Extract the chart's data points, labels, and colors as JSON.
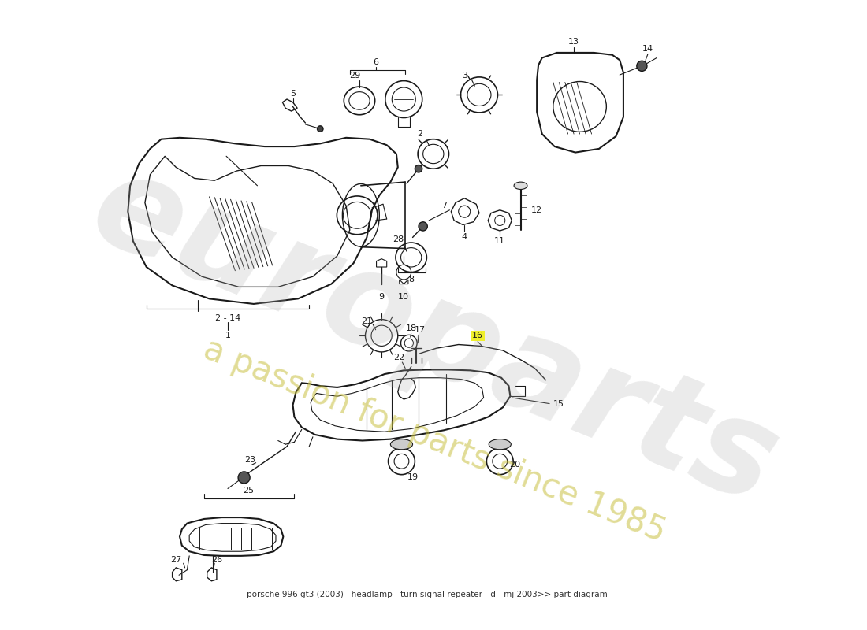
{
  "bg_color": "#ffffff",
  "line_color": "#1a1a1a",
  "watermark1": "europarts",
  "watermark2": "a passion for parts since 1985",
  "wm_color1": "#b0b0b0",
  "wm_color2": "#c8c040",
  "title": "porsche 996 gt3 (2003)   headlamp - turn signal repeater - d - mj 2003>> part diagram",
  "figsize": [
    11.0,
    8.0
  ],
  "dpi": 100
}
